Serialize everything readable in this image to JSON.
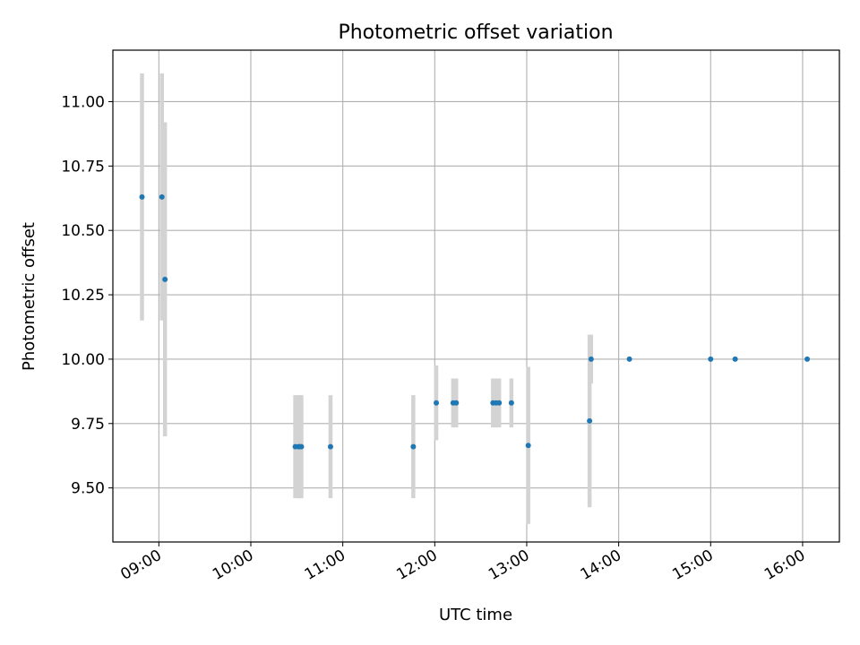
{
  "chart_data": {
    "type": "scatter",
    "title": "Photometric offset variation",
    "xlabel": "UTC time",
    "ylabel": "Photometric offset",
    "x_ticks": [
      "09:00",
      "10:00",
      "11:00",
      "12:00",
      "13:00",
      "14:00",
      "15:00",
      "16:00"
    ],
    "y_ticks": [
      "9.50",
      "9.75",
      "10.00",
      "10.25",
      "10.50",
      "10.75",
      "11.00"
    ],
    "ylim": [
      9.29,
      11.2
    ],
    "xlim": [
      "08:30",
      "16:24"
    ],
    "grid": true,
    "legend": false,
    "marker_color": "#1f77b4",
    "errorbar_color": "#d3d3d3",
    "points": [
      {
        "time": "08:49",
        "y": 10.63,
        "err": 0.48
      },
      {
        "time": "09:02",
        "y": 10.63,
        "err": 0.48
      },
      {
        "time": "09:04",
        "y": 10.31,
        "err": 0.61
      },
      {
        "time": "10:29",
        "y": 9.66,
        "err": 0.2
      },
      {
        "time": "10:31",
        "y": 9.66,
        "err": 0.2
      },
      {
        "time": "10:32",
        "y": 9.66,
        "err": 0.2
      },
      {
        "time": "10:33",
        "y": 9.66,
        "err": 0.2
      },
      {
        "time": "10:52",
        "y": 9.66,
        "err": 0.2
      },
      {
        "time": "11:46",
        "y": 9.66,
        "err": 0.2
      },
      {
        "time": "12:01",
        "y": 9.83,
        "err": 0.145
      },
      {
        "time": "12:12",
        "y": 9.83,
        "err": 0.095
      },
      {
        "time": "12:14",
        "y": 9.83,
        "err": 0.095
      },
      {
        "time": "12:38",
        "y": 9.83,
        "err": 0.095
      },
      {
        "time": "12:40",
        "y": 9.83,
        "err": 0.095
      },
      {
        "time": "12:42",
        "y": 9.83,
        "err": 0.095
      },
      {
        "time": "12:50",
        "y": 9.83,
        "err": 0.095
      },
      {
        "time": "13:01",
        "y": 9.665,
        "err": 0.305
      },
      {
        "time": "13:41",
        "y": 9.76,
        "err": 0.335
      },
      {
        "time": "13:42",
        "y": 10.0,
        "err": 0.095
      },
      {
        "time": "14:07",
        "y": 10.0,
        "err": 0.0
      },
      {
        "time": "15:00",
        "y": 10.0,
        "err": 0.0
      },
      {
        "time": "15:16",
        "y": 10.0,
        "err": 0.0
      },
      {
        "time": "16:03",
        "y": 10.0,
        "err": 0.0
      }
    ]
  }
}
